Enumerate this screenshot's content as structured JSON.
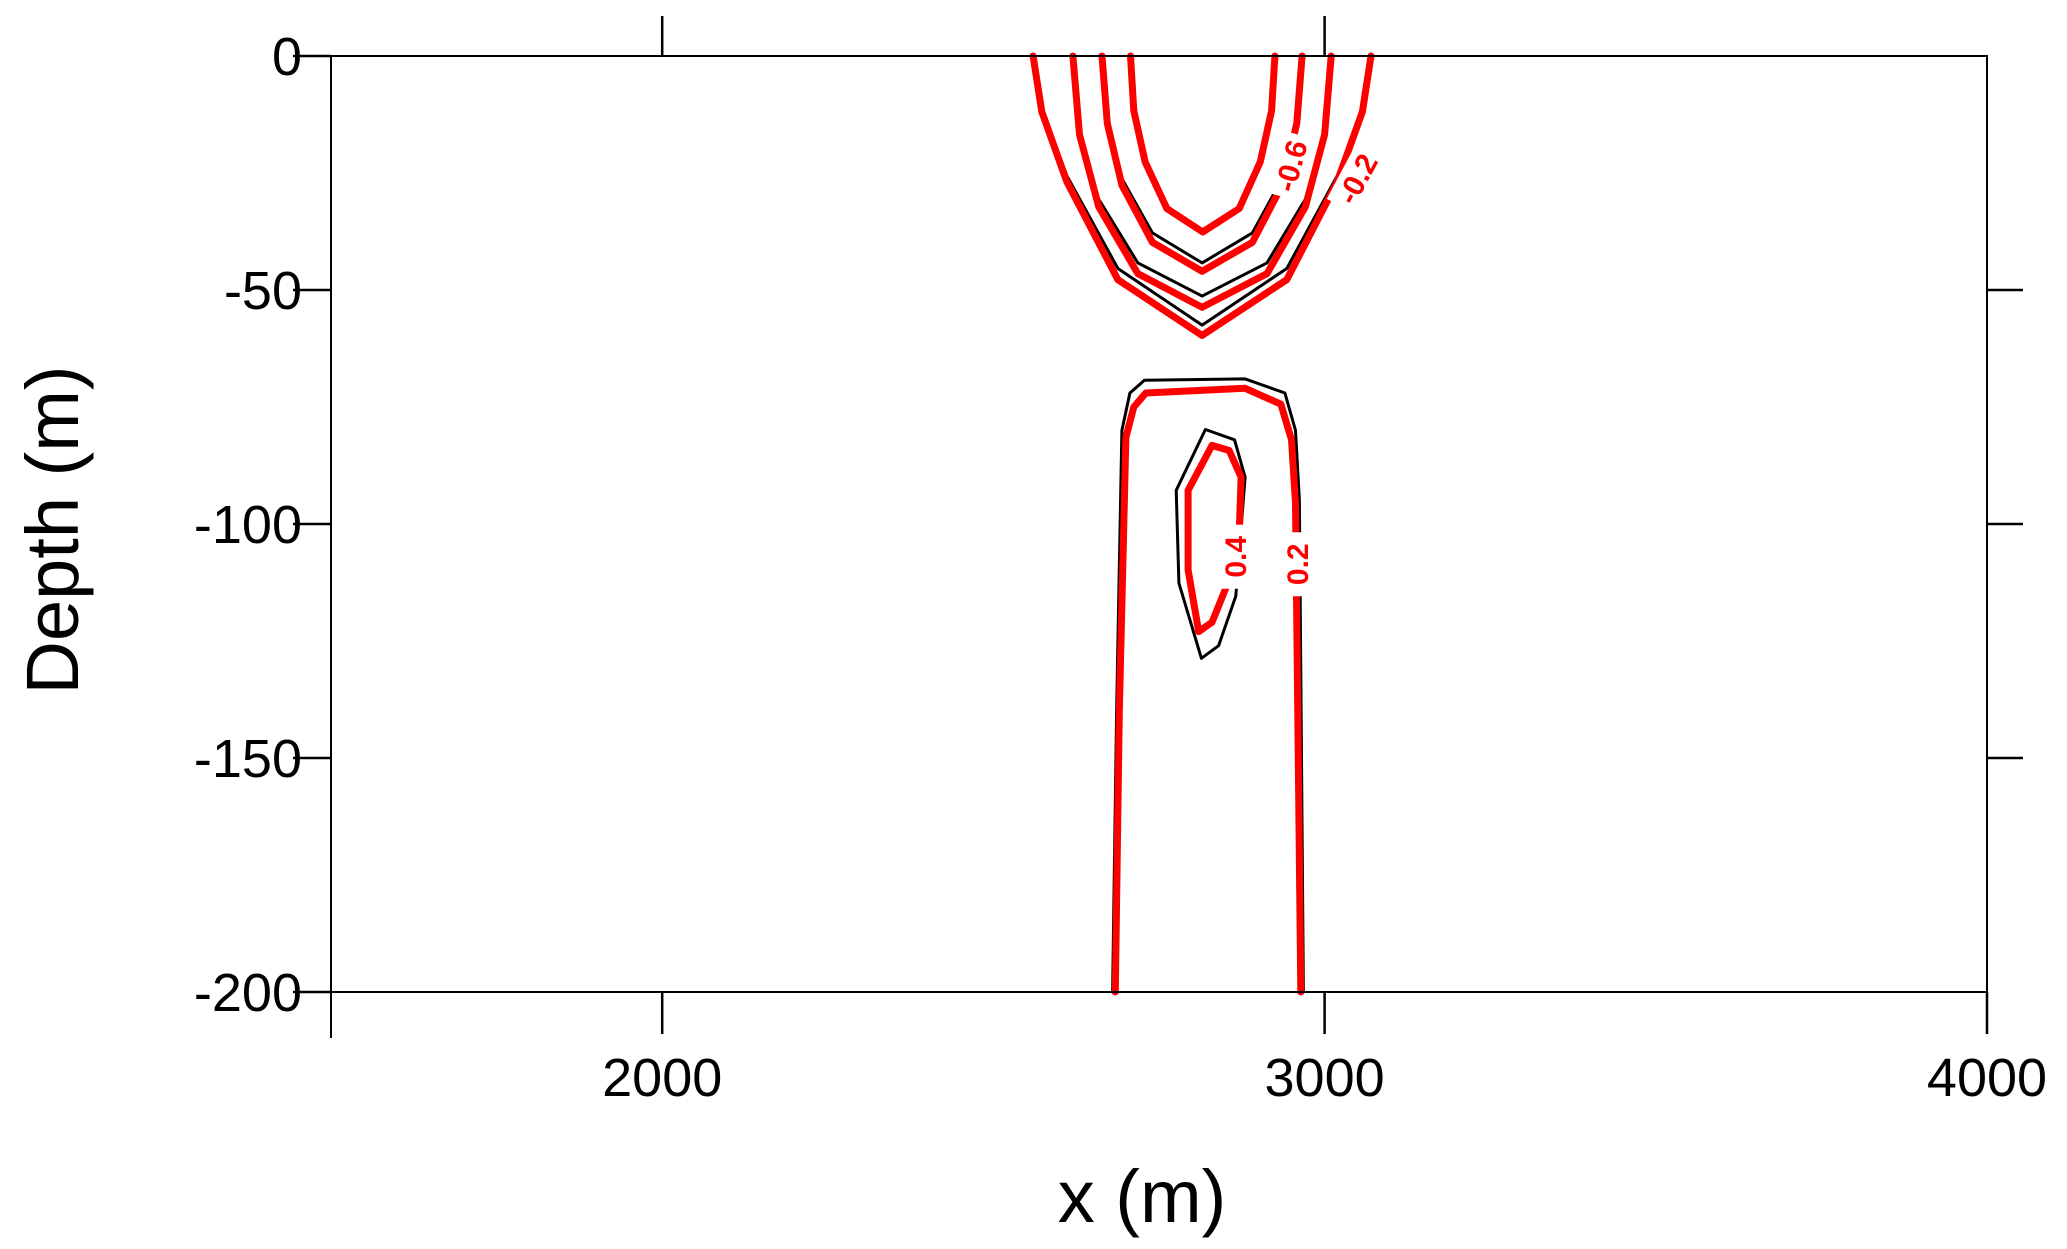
{
  "chart_data": {
    "type": "contour",
    "title": "",
    "xlabel": "x (m)",
    "ylabel": "Depth (m)",
    "xlim": [
      1500,
      4000
    ],
    "ylim": [
      -200,
      0
    ],
    "xticks": [
      2000,
      3000,
      4000
    ],
    "xtick_labels": [
      "2000",
      "3000",
      "4000"
    ],
    "yticks": [
      0,
      -50,
      -100,
      -150,
      -200
    ],
    "ytick_labels": [
      "0",
      "-50",
      "-100",
      "-150",
      "-200"
    ],
    "grid": false,
    "colors": {
      "red_series": "#ff0000",
      "black_series": "#000000"
    },
    "series": [
      {
        "color": "#ff0000",
        "contours": [
          {
            "level": -0.8,
            "x": [
              2707,
              2712,
              2729,
              2762,
              2816,
              2871,
              2903,
              2920,
              2925
            ],
            "y": [
              0,
              -11.7,
              -22.6,
              -32.6,
              -37.6,
              -32.6,
              -22.6,
              -11.7,
              0
            ]
          },
          {
            "level": -0.6,
            "x": [
              2664,
              2672,
              2694,
              2740,
              2815,
              2891,
              2936,
              2958,
              2966
            ],
            "y": [
              0,
              -14.4,
              -27.6,
              -39.8,
              -46,
              -39.8,
              -27.6,
              -14.4,
              0
            ]
          },
          {
            "level": -0.4,
            "x": [
              2620,
              2630,
              2659,
              2718,
              2815,
              2913,
              2971,
              3000,
              3010
            ],
            "y": [
              0,
              -16.8,
              -32.2,
              -46.5,
              -53.7,
              -46.5,
              -32.2,
              -16.8,
              0
            ]
          },
          {
            "level": -0.2,
            "x": [
              2560,
              2573,
              2611,
              2688,
              2815,
              2943,
              3019,
              3057,
              3070
            ],
            "y": [
              0,
              -11.9,
              -26.9,
              -47.8,
              -59.7,
              -47.8,
              -26.9,
              -11.9,
              0
            ]
          },
          {
            "level": 0.2,
            "x": [
              2684,
              2690,
              2700,
              2712,
              2730,
              2880,
              2934,
              2950,
              2956,
              2964
            ],
            "y": [
              -200,
              -140,
              -81.5,
              -75,
              -72,
              -71,
              -74.4,
              -82,
              -95.6,
              -200
            ]
          },
          {
            "level": 0.4,
            "x": [
              2874,
              2856,
              2830,
              2794,
              2794,
              2810,
              2830,
              2870,
              2874
            ],
            "y": [
              -90,
              -84.3,
              -83.2,
              -92.8,
              -109.8,
              -123,
              -121,
              -107,
              -90
            ]
          }
        ]
      },
      {
        "color": "#000000",
        "contours": [
          {
            "level": -0.6,
            "x": [
              2664,
              2672,
              2694,
              2740,
              2815,
              2891,
              2936,
              2958,
              2966
            ],
            "y": [
              0,
              -13.7,
              -26.2,
              -37.8,
              -44.2,
              -37.8,
              -26.2,
              -13.7,
              0
            ]
          },
          {
            "level": -0.4,
            "x": [
              2620,
              2630,
              2659,
              2718,
              2815,
              2913,
              2971,
              3000,
              3010
            ],
            "y": [
              0,
              -16,
              -30.6,
              -44.2,
              -51.3,
              -44.2,
              -30.6,
              -16,
              0
            ]
          },
          {
            "level": -0.2,
            "x": [
              2560,
              2573,
              2611,
              2688,
              2815,
              2943,
              3019,
              3057,
              3070
            ],
            "y": [
              0,
              -11.3,
              -25.6,
              -45.4,
              -57.5,
              -45.4,
              -25.6,
              -11.3,
              0
            ]
          },
          {
            "level": 0.2,
            "x": [
              2680,
              2686,
              2694,
              2706,
              2728,
              2880,
              2940,
              2956,
              2962,
              2968
            ],
            "y": [
              -200,
              -140,
              -80,
              -72,
              -69.3,
              -69,
              -72,
              -80,
              -95,
              -200
            ]
          },
          {
            "level": 0.4,
            "x": [
              2880,
              2864,
              2820,
              2776,
              2780,
              2814,
              2840,
              2866,
              2880
            ],
            "y": [
              -90,
              -82,
              -79.8,
              -92.8,
              -112.6,
              -128.7,
              -126,
              -115.4,
              -90
            ]
          }
        ]
      }
    ],
    "contour_labels": [
      {
        "text": "-0.6",
        "x": 2950,
        "y": -23.5
      },
      {
        "text": "-0.2",
        "x": 3050,
        "y": -26.3
      },
      {
        "text": "0.4",
        "x": 2866,
        "y": -107
      },
      {
        "text": "0.2",
        "x": 2960,
        "y": -108.6
      }
    ]
  }
}
